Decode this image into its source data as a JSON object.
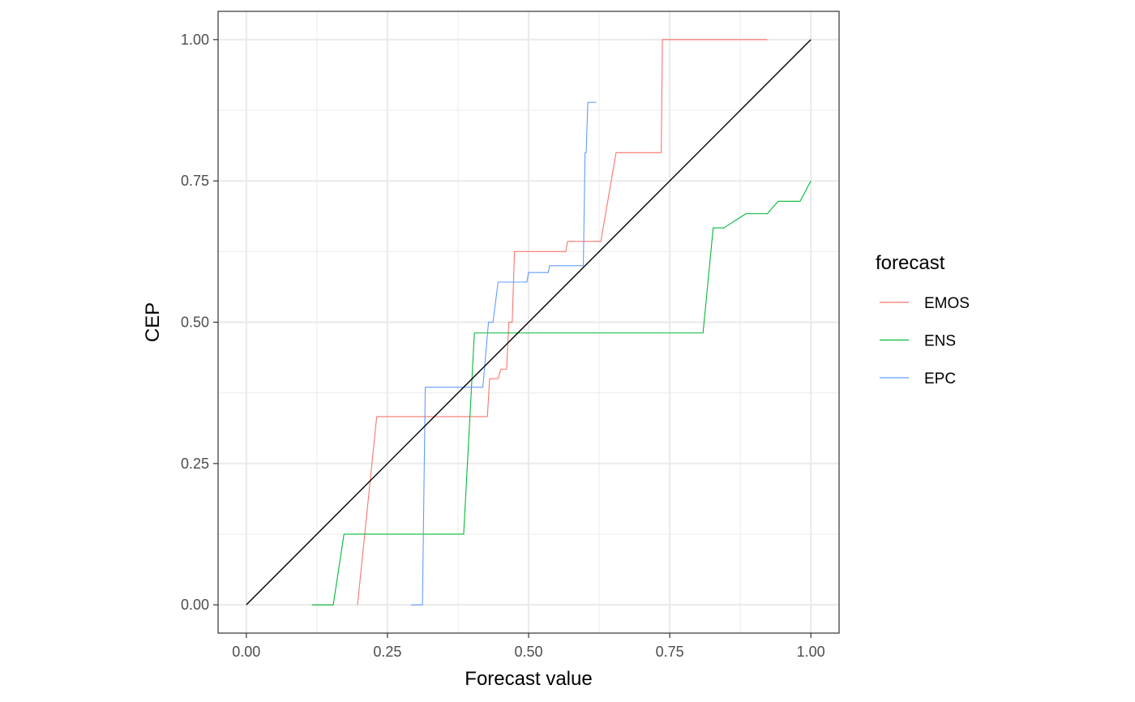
{
  "chart_data": {
    "type": "line",
    "title": "",
    "xlabel": "Forecast value",
    "ylabel": "CEP",
    "xlim": [
      -0.05,
      1.05
    ],
    "ylim": [
      -0.05,
      1.05
    ],
    "x_ticks": [
      0,
      0.25,
      0.5,
      0.75,
      1
    ],
    "y_ticks": [
      0,
      0.25,
      0.5,
      0.75,
      1
    ],
    "x_tick_labels": [
      "0.00",
      "0.25",
      "0.50",
      "0.75",
      "1.00"
    ],
    "y_tick_labels": [
      "0.00",
      "0.25",
      "0.50",
      "0.75",
      "1.00"
    ],
    "grid": true,
    "legend": {
      "title": "forecast",
      "position": "right"
    },
    "reference_line": {
      "x": [
        0,
        1
      ],
      "y": [
        0,
        1
      ],
      "color": "#000000"
    },
    "series": [
      {
        "name": "EMOS",
        "color": "#F8766D",
        "x": [
          0.197,
          0.231,
          0.427,
          0.431,
          0.446,
          0.451,
          0.461,
          0.465,
          0.471,
          0.475,
          0.566,
          0.569,
          0.628,
          0.655,
          0.735,
          0.737,
          0.923
        ],
        "y": [
          0.0,
          0.333,
          0.333,
          0.4,
          0.4,
          0.417,
          0.417,
          0.5,
          0.5,
          0.625,
          0.625,
          0.643,
          0.643,
          0.8,
          0.8,
          1.0,
          1.0
        ]
      },
      {
        "name": "ENS",
        "color": "#00BA38",
        "x": [
          0.116,
          0.154,
          0.173,
          0.385,
          0.404,
          0.809,
          0.827,
          0.846,
          0.885,
          0.923,
          0.942,
          0.981,
          1.0
        ],
        "y": [
          0.0,
          0.0,
          0.125,
          0.125,
          0.481,
          0.481,
          0.667,
          0.667,
          0.692,
          0.692,
          0.714,
          0.714,
          0.75
        ]
      },
      {
        "name": "EPC",
        "color": "#619CFF",
        "x": [
          0.292,
          0.312,
          0.317,
          0.419,
          0.429,
          0.433,
          0.437,
          0.446,
          0.497,
          0.5,
          0.535,
          0.537,
          0.597,
          0.6,
          0.602,
          0.605,
          0.62
        ],
        "y": [
          0.0,
          0.0,
          0.385,
          0.385,
          0.5,
          0.5,
          0.5,
          0.571,
          0.571,
          0.588,
          0.588,
          0.6,
          0.6,
          0.8,
          0.8,
          0.889,
          0.889
        ]
      }
    ]
  }
}
